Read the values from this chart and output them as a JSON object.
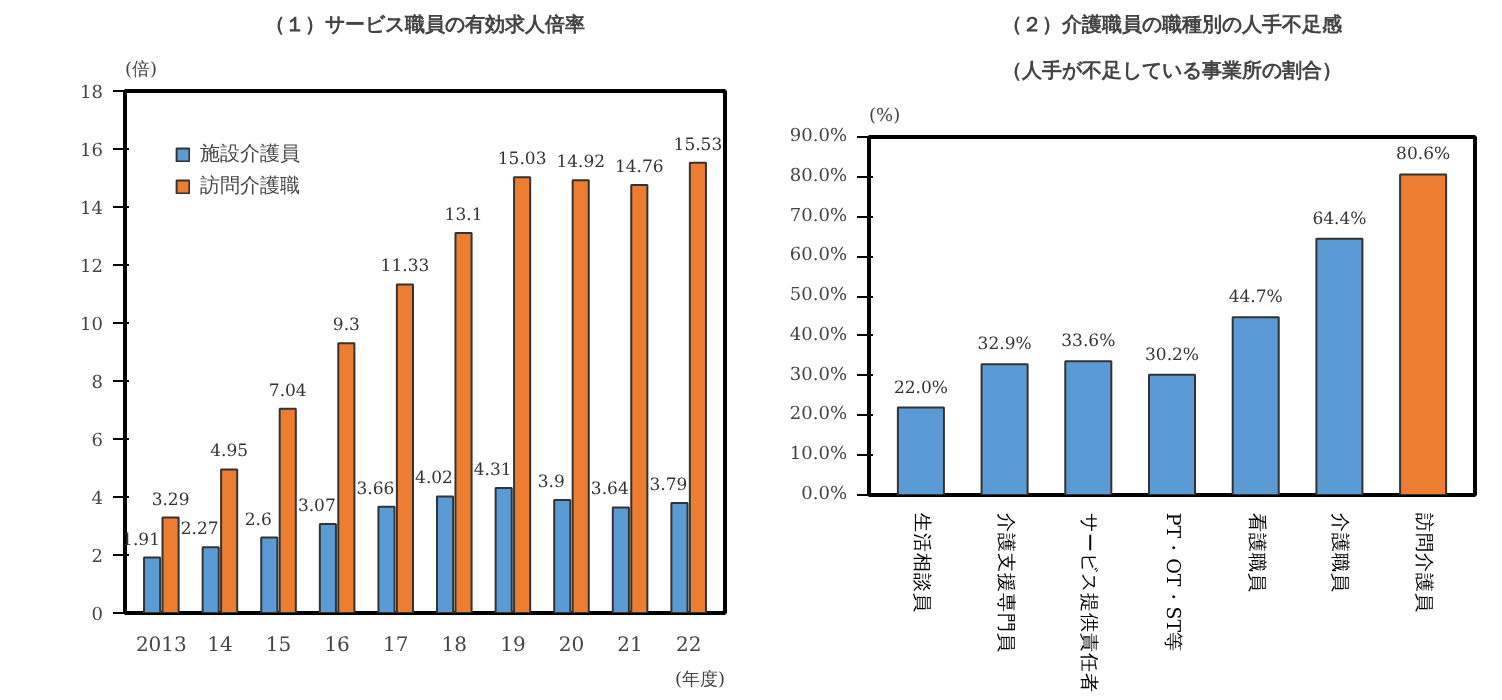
{
  "chart_data": [
    {
      "type": "bar",
      "title": "（１）サービス職員の有効求人倍率",
      "ylabel": "(倍)",
      "xlabel": "(年度)",
      "categories": [
        "2013",
        "14",
        "15",
        "16",
        "17",
        "18",
        "19",
        "20",
        "21",
        "22"
      ],
      "series": [
        {
          "name": "施設介護員",
          "color": "#5b9bd5",
          "values": [
            1.91,
            2.27,
            2.6,
            3.07,
            3.66,
            4.02,
            4.31,
            3.9,
            3.64,
            3.79
          ]
        },
        {
          "name": "訪問介護職",
          "color": "#ed7d31",
          "values": [
            3.29,
            4.95,
            7.04,
            9.3,
            11.33,
            13.1,
            15.03,
            14.92,
            14.76,
            15.53
          ]
        }
      ],
      "ylim": [
        0,
        18
      ],
      "yticks": [
        0,
        2,
        4,
        6,
        8,
        10,
        12,
        14,
        16,
        18
      ],
      "data_labels": true,
      "legend": "top left",
      "grid": false
    },
    {
      "type": "bar",
      "title": "（２）介護職員の職種別の人手不足感",
      "subtitle": "（人手が不足している事業所の割合）",
      "ylabel": "(%)",
      "categories": [
        "生活相談員",
        "介護支援専門員",
        "サービス提供責任者",
        "PT・OT・ST等",
        "看護職員",
        "介護職員",
        "訪問介護員"
      ],
      "values": [
        22.0,
        32.9,
        33.6,
        30.2,
        44.7,
        64.4,
        80.6
      ],
      "colors": [
        "#5b9bd5",
        "#5b9bd5",
        "#5b9bd5",
        "#5b9bd5",
        "#5b9bd5",
        "#5b9bd5",
        "#ed7d31"
      ],
      "value_labels": [
        "22.0%",
        "32.9%",
        "33.6%",
        "30.2%",
        "44.7%",
        "64.4%",
        "80.6%"
      ],
      "ylim": [
        0,
        90
      ],
      "yticks": [
        {
          "value": 0,
          "label": "0.0%"
        },
        {
          "value": 10,
          "label": "10.0%"
        },
        {
          "value": 20,
          "label": "20.0%"
        },
        {
          "value": 30,
          "label": "30.0%"
        },
        {
          "value": 40,
          "label": "40.0%"
        },
        {
          "value": 50,
          "label": "50.0%"
        },
        {
          "value": 60,
          "label": "60.0%"
        },
        {
          "value": 70,
          "label": "70.0%"
        },
        {
          "value": 80,
          "label": "80.0%"
        },
        {
          "value": 90,
          "label": "90.0%"
        }
      ],
      "grid": false
    }
  ]
}
